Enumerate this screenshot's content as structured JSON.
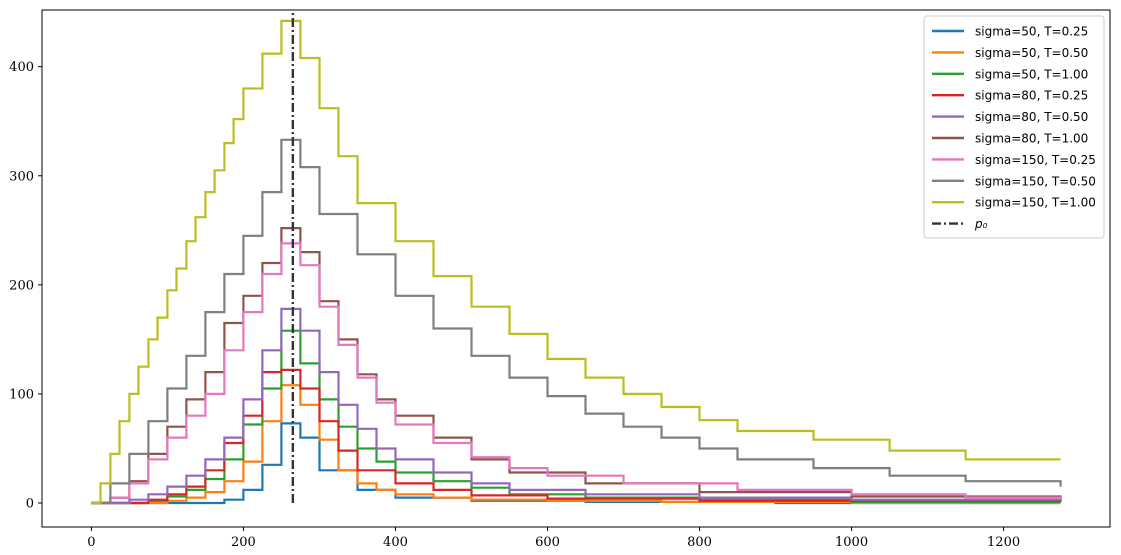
{
  "chart_data": {
    "type": "line",
    "title": "",
    "xlabel": "",
    "ylabel": "",
    "xlim": [
      -65,
      1340
    ],
    "ylim": [
      -22,
      452
    ],
    "x_ticks": [
      0,
      200,
      400,
      600,
      800,
      1000,
      1200
    ],
    "x_tick_labels": [
      "0",
      "200",
      "400",
      "600",
      "800",
      "1000",
      "1200"
    ],
    "y_ticks": [
      0,
      100,
      200,
      300,
      400
    ],
    "y_tick_labels": [
      "0",
      "100",
      "200",
      "300",
      "400"
    ],
    "legend_position": "top-right",
    "grid": false,
    "series": [
      {
        "name": "sigma=50, T=0.25",
        "color": "#1f77b4",
        "style": "step",
        "x": [
          0,
          75,
          100,
          125,
          150,
          175,
          200,
          225,
          250,
          275,
          300,
          350,
          400,
          500,
          650,
          900,
          1275
        ],
        "y": [
          0,
          0,
          0,
          0,
          0,
          3,
          12,
          35,
          73,
          60,
          30,
          12,
          5,
          2,
          1,
          0,
          0
        ]
      },
      {
        "name": "sigma=50, T=0.50",
        "color": "#ff7f0e",
        "style": "step",
        "x": [
          0,
          75,
          100,
          125,
          150,
          175,
          200,
          225,
          250,
          275,
          300,
          325,
          350,
          375,
          400,
          450,
          500,
          600,
          750,
          1000,
          1275
        ],
        "y": [
          0,
          0,
          2,
          5,
          10,
          20,
          38,
          75,
          108,
          90,
          58,
          30,
          18,
          12,
          8,
          5,
          3,
          2,
          1,
          0,
          0
        ]
      },
      {
        "name": "sigma=50, T=1.00",
        "color": "#2ca02c",
        "style": "step",
        "x": [
          0,
          50,
          75,
          100,
          125,
          150,
          175,
          200,
          225,
          250,
          275,
          300,
          325,
          350,
          375,
          400,
          450,
          500,
          550,
          650,
          800,
          1000,
          1275
        ],
        "y": [
          0,
          0,
          2,
          6,
          12,
          22,
          40,
          72,
          105,
          158,
          128,
          95,
          70,
          50,
          38,
          28,
          20,
          14,
          8,
          5,
          3,
          1,
          1
        ]
      },
      {
        "name": "sigma=80, T=0.25",
        "color": "#d62728",
        "style": "step",
        "x": [
          0,
          50,
          75,
          100,
          125,
          150,
          175,
          200,
          225,
          250,
          275,
          300,
          325,
          350,
          400,
          450,
          500,
          600,
          800,
          1275
        ],
        "y": [
          0,
          0,
          3,
          8,
          15,
          30,
          55,
          80,
          120,
          122,
          105,
          75,
          48,
          30,
          18,
          12,
          7,
          4,
          2,
          1
        ]
      },
      {
        "name": "sigma=80, T=0.50",
        "color": "#9467bd",
        "style": "step",
        "x": [
          0,
          50,
          75,
          100,
          125,
          150,
          175,
          200,
          225,
          250,
          275,
          300,
          325,
          350,
          375,
          400,
          450,
          500,
          550,
          650,
          800,
          1000,
          1275
        ],
        "y": [
          0,
          3,
          8,
          15,
          25,
          40,
          60,
          95,
          140,
          178,
          158,
          120,
          90,
          68,
          50,
          40,
          28,
          18,
          12,
          8,
          5,
          3,
          2
        ]
      },
      {
        "name": "sigma=80, T=1.00",
        "color": "#8c564b",
        "style": "step",
        "x": [
          0,
          25,
          50,
          75,
          100,
          125,
          150,
          175,
          200,
          225,
          250,
          275,
          300,
          325,
          350,
          375,
          400,
          450,
          500,
          550,
          650,
          800,
          1000,
          1275
        ],
        "y": [
          0,
          5,
          20,
          45,
          70,
          95,
          120,
          165,
          190,
          220,
          252,
          230,
          185,
          150,
          118,
          95,
          80,
          60,
          40,
          28,
          18,
          10,
          6,
          3
        ]
      },
      {
        "name": "sigma=150, T=0.25",
        "color": "#e377c2",
        "style": "step",
        "x": [
          0,
          25,
          50,
          75,
          100,
          125,
          150,
          175,
          200,
          225,
          250,
          275,
          300,
          325,
          350,
          375,
          400,
          450,
          500,
          550,
          600,
          700,
          850,
          1000,
          1150,
          1275
        ],
        "y": [
          0,
          5,
          18,
          40,
          60,
          80,
          100,
          140,
          175,
          210,
          238,
          218,
          180,
          145,
          115,
          92,
          72,
          55,
          42,
          32,
          25,
          18,
          12,
          8,
          5,
          3
        ]
      },
      {
        "name": "sigma=150, T=0.50",
        "color": "#7f7f7f",
        "style": "step",
        "x": [
          0,
          25,
          50,
          75,
          100,
          125,
          150,
          175,
          200,
          225,
          250,
          275,
          300,
          350,
          400,
          450,
          500,
          550,
          600,
          650,
          700,
          750,
          800,
          850,
          950,
          1050,
          1150,
          1275
        ],
        "y": [
          0,
          18,
          45,
          75,
          105,
          135,
          175,
          210,
          245,
          285,
          333,
          308,
          265,
          228,
          190,
          160,
          135,
          115,
          98,
          82,
          70,
          60,
          50,
          40,
          32,
          25,
          20,
          15
        ]
      },
      {
        "name": "sigma=150, T=1.00",
        "color": "#bcbd22",
        "style": "step",
        "x": [
          0,
          12,
          25,
          37,
          50,
          62,
          75,
          87,
          100,
          112,
          125,
          137,
          150,
          162,
          175,
          187,
          200,
          225,
          250,
          275,
          300,
          325,
          350,
          400,
          450,
          500,
          550,
          600,
          650,
          700,
          750,
          800,
          850,
          950,
          1050,
          1150,
          1275
        ],
        "y": [
          0,
          18,
          45,
          75,
          100,
          125,
          150,
          170,
          195,
          215,
          240,
          262,
          285,
          305,
          330,
          352,
          380,
          412,
          442,
          408,
          362,
          318,
          275,
          240,
          208,
          180,
          155,
          132,
          115,
          100,
          88,
          76,
          66,
          58,
          48,
          40,
          40
        ]
      }
    ],
    "reference_line": {
      "name": "$p_0$",
      "label": "p₀",
      "x": 265,
      "y_range": [
        0,
        452
      ],
      "color": "#333333",
      "style": "dashdot"
    }
  }
}
